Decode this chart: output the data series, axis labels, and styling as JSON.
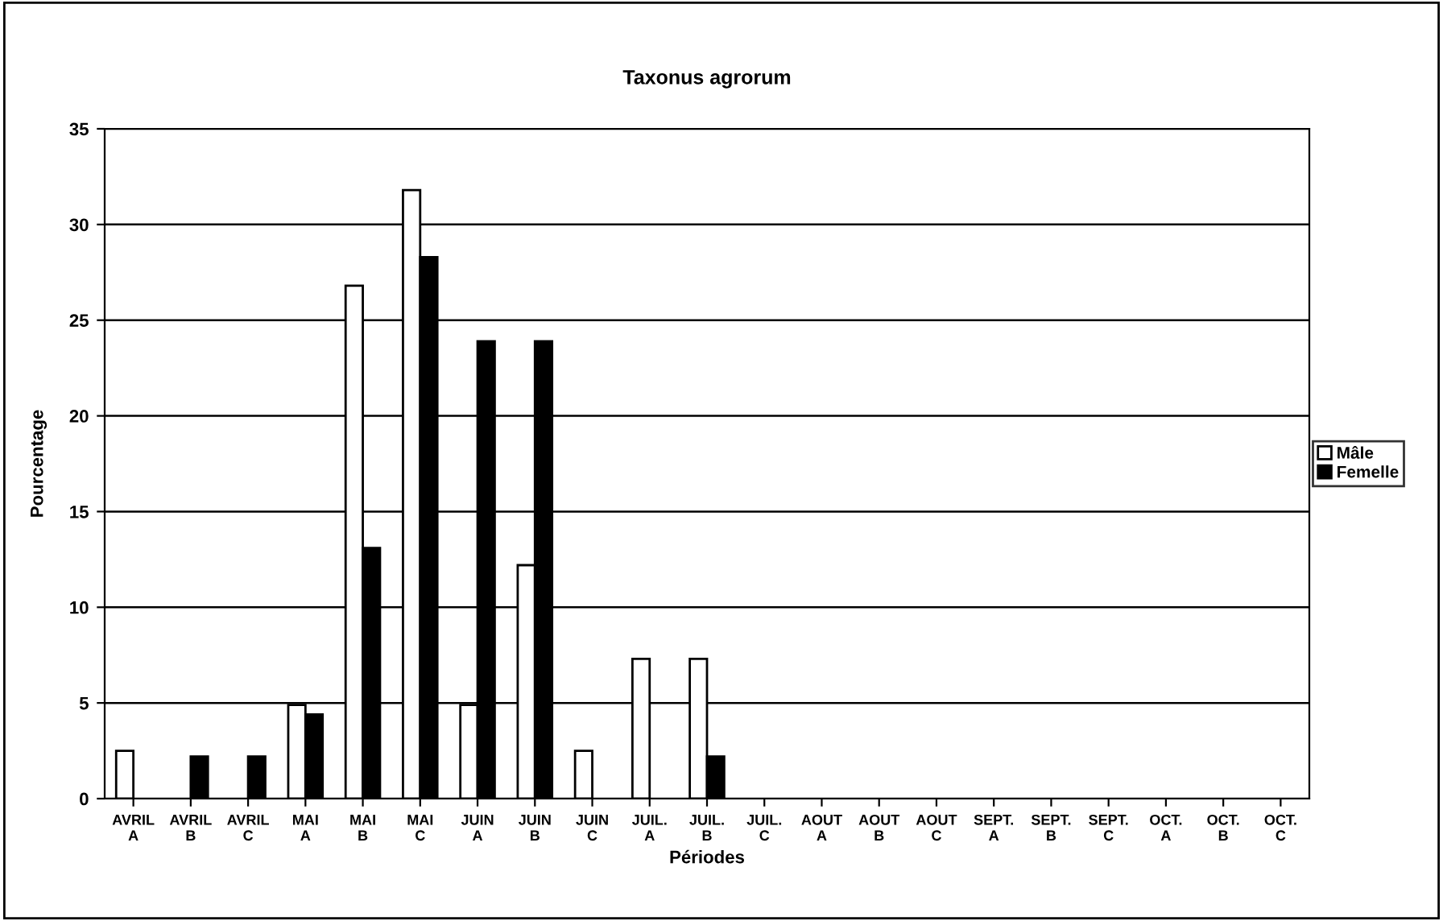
{
  "chart_data": {
    "type": "bar",
    "title": "Taxonus agrorum",
    "xlabel": "Périodes",
    "ylabel": "Pourcentage",
    "categories": [
      "AVRIL\nA",
      "AVRIL\nB",
      "AVRIL\nC",
      "MAI\nA",
      "MAI\nB",
      "MAI\nC",
      "JUIN\nA",
      "JUIN\nB",
      "JUIN\nC",
      "JUIL.\nA",
      "JUIL.\nB",
      "JUIL.\nC",
      "AOUT\nA",
      "AOUT\nB",
      "AOUT\nC",
      "SEPT.\nA",
      "SEPT.\nB",
      "SEPT.\nC",
      "OCT.\nA",
      "OCT.\nB",
      "OCT.\nC"
    ],
    "series": [
      {
        "name": "Mâle",
        "color": "#ffffff",
        "values": [
          2.5,
          null,
          null,
          4.9,
          26.8,
          31.8,
          4.9,
          12.2,
          2.5,
          7.3,
          7.3,
          null,
          null,
          null,
          null,
          null,
          null,
          null,
          null,
          null,
          null
        ]
      },
      {
        "name": "Femelle",
        "color": "#000000",
        "values": [
          null,
          2.2,
          2.2,
          4.4,
          13.1,
          28.3,
          23.9,
          23.9,
          null,
          null,
          2.2,
          null,
          null,
          null,
          null,
          null,
          null,
          null,
          null,
          null,
          null
        ]
      }
    ],
    "ylim": [
      0,
      35
    ],
    "yticks": [
      0,
      5,
      10,
      15,
      20,
      25,
      30,
      35
    ],
    "grid": "y",
    "legend": "right"
  }
}
